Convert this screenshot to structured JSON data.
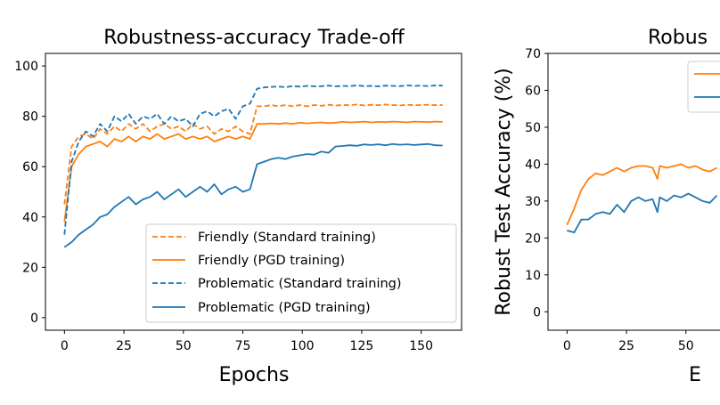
{
  "colors": {
    "friendly": "#ff7f0e",
    "problematic": "#1f77b4"
  },
  "chart_data": [
    {
      "type": "line",
      "title": "Robustness-accuracy Trade-off",
      "xlabel": "Epochs",
      "ylabel": "",
      "xlim": [
        -8,
        167
      ],
      "ylim": [
        -5,
        105
      ],
      "xticks": [
        0,
        25,
        50,
        75,
        100,
        125,
        150
      ],
      "yticks": [
        0,
        20,
        40,
        60,
        80,
        100
      ],
      "grid": false,
      "legend_position": "lower-right",
      "x": [
        0,
        3,
        6,
        9,
        12,
        15,
        18,
        21,
        24,
        27,
        30,
        33,
        36,
        39,
        42,
        45,
        48,
        51,
        54,
        57,
        60,
        63,
        66,
        69,
        72,
        75,
        78,
        81,
        84,
        87,
        90,
        93,
        96,
        99,
        102,
        105,
        108,
        111,
        114,
        117,
        120,
        123,
        126,
        129,
        132,
        135,
        138,
        141,
        144,
        147,
        150,
        153,
        156,
        159
      ],
      "series": [
        {
          "name": "Friendly (Standard training)",
          "color": "#ff7f0e",
          "style": "dashed",
          "values": [
            45,
            68,
            72,
            73,
            71,
            75,
            73,
            76,
            74,
            77,
            75,
            77,
            74,
            76,
            77,
            75,
            76,
            74,
            77,
            75,
            76,
            73,
            75,
            74,
            76,
            74,
            73,
            84,
            84,
            84.5,
            84,
            84.5,
            84,
            84.5,
            84,
            84.5,
            84.2,
            84.6,
            84.3,
            84.5,
            84.4,
            84.7,
            84.3,
            84.6,
            84.4,
            84.7,
            84.5,
            84.3,
            84.6,
            84.4,
            84.5,
            84.6,
            84.4,
            84.5
          ]
        },
        {
          "name": "Friendly (PGD training)",
          "color": "#ff7f0e",
          "style": "solid",
          "values": [
            38,
            60,
            65,
            68,
            69,
            70,
            68,
            71,
            70,
            72,
            70,
            72,
            71,
            73,
            71,
            72,
            73,
            71,
            72,
            71,
            72,
            70,
            71,
            72,
            71,
            72,
            71,
            77,
            77,
            77.2,
            77,
            77.3,
            77,
            77.5,
            77.2,
            77.4,
            77.6,
            77.3,
            77.5,
            77.8,
            77.6,
            77.7,
            77.9,
            77.6,
            77.8,
            77.7,
            77.9,
            77.8,
            77.6,
            77.9,
            77.8,
            77.7,
            77.9,
            77.8
          ]
        },
        {
          "name": "Problematic (Standard training)",
          "color": "#1f77b4",
          "style": "dashed",
          "values": [
            33,
            62,
            70,
            74,
            72,
            77,
            74,
            80,
            78,
            81,
            77,
            80,
            79,
            81,
            77,
            80,
            78,
            79,
            76,
            81,
            82,
            80,
            82,
            83,
            79,
            84,
            85,
            91,
            91.5,
            91.7,
            91.8,
            91.6,
            92,
            91.8,
            92.1,
            91.9,
            92,
            92.2,
            91.9,
            92.1,
            92,
            92.3,
            92,
            92.1,
            91.9,
            92.2,
            92.1,
            92,
            92.3,
            92.1,
            92.2,
            92,
            92.3,
            92.2
          ]
        },
        {
          "name": "Problematic (PGD training)",
          "color": "#1f77b4",
          "style": "solid",
          "values": [
            28,
            30,
            33,
            35,
            37,
            40,
            41,
            44,
            46,
            48,
            45,
            47,
            48,
            50,
            47,
            49,
            51,
            48,
            50,
            52,
            50,
            53,
            49,
            51,
            52,
            50,
            51,
            61,
            62,
            63,
            63.5,
            63,
            64,
            64.5,
            65,
            64.8,
            66,
            65.5,
            68,
            68.2,
            68.5,
            68.3,
            68.8,
            68.6,
            68.9,
            68.5,
            69,
            68.7,
            68.9,
            68.6,
            68.8,
            69,
            68.5,
            68.4
          ]
        }
      ]
    },
    {
      "type": "line",
      "title": "Robus",
      "xlabel": "E",
      "ylabel": "Robust Test Accuracy (%)",
      "xlim": [
        -8,
        167
      ],
      "ylim": [
        -5,
        70
      ],
      "xticks": [
        0,
        25,
        50
      ],
      "yticks": [
        0,
        10,
        20,
        30,
        40,
        50,
        60,
        70
      ],
      "grid": false,
      "legend_position": "top-right",
      "x": [
        0,
        3,
        6,
        9,
        12,
        15,
        18,
        21,
        24,
        27,
        30,
        33,
        36,
        38,
        39,
        42,
        45,
        48,
        51,
        54,
        57,
        60,
        63
      ],
      "series": [
        {
          "color": "#ff7f0e",
          "style": "solid",
          "values": [
            23.5,
            28,
            33,
            36,
            37.5,
            37,
            38,
            39,
            38,
            39,
            39.5,
            39.5,
            39,
            36,
            39.5,
            39,
            39.5,
            40,
            39,
            39.5,
            38.5,
            38,
            39
          ]
        },
        {
          "color": "#1f77b4",
          "style": "solid",
          "values": [
            22,
            21.5,
            25,
            25,
            26.5,
            27,
            26.5,
            29,
            27,
            30,
            31,
            30,
            30.5,
            27,
            31,
            30,
            31.5,
            31,
            32,
            31,
            30,
            29.5,
            31.5
          ]
        }
      ]
    }
  ]
}
